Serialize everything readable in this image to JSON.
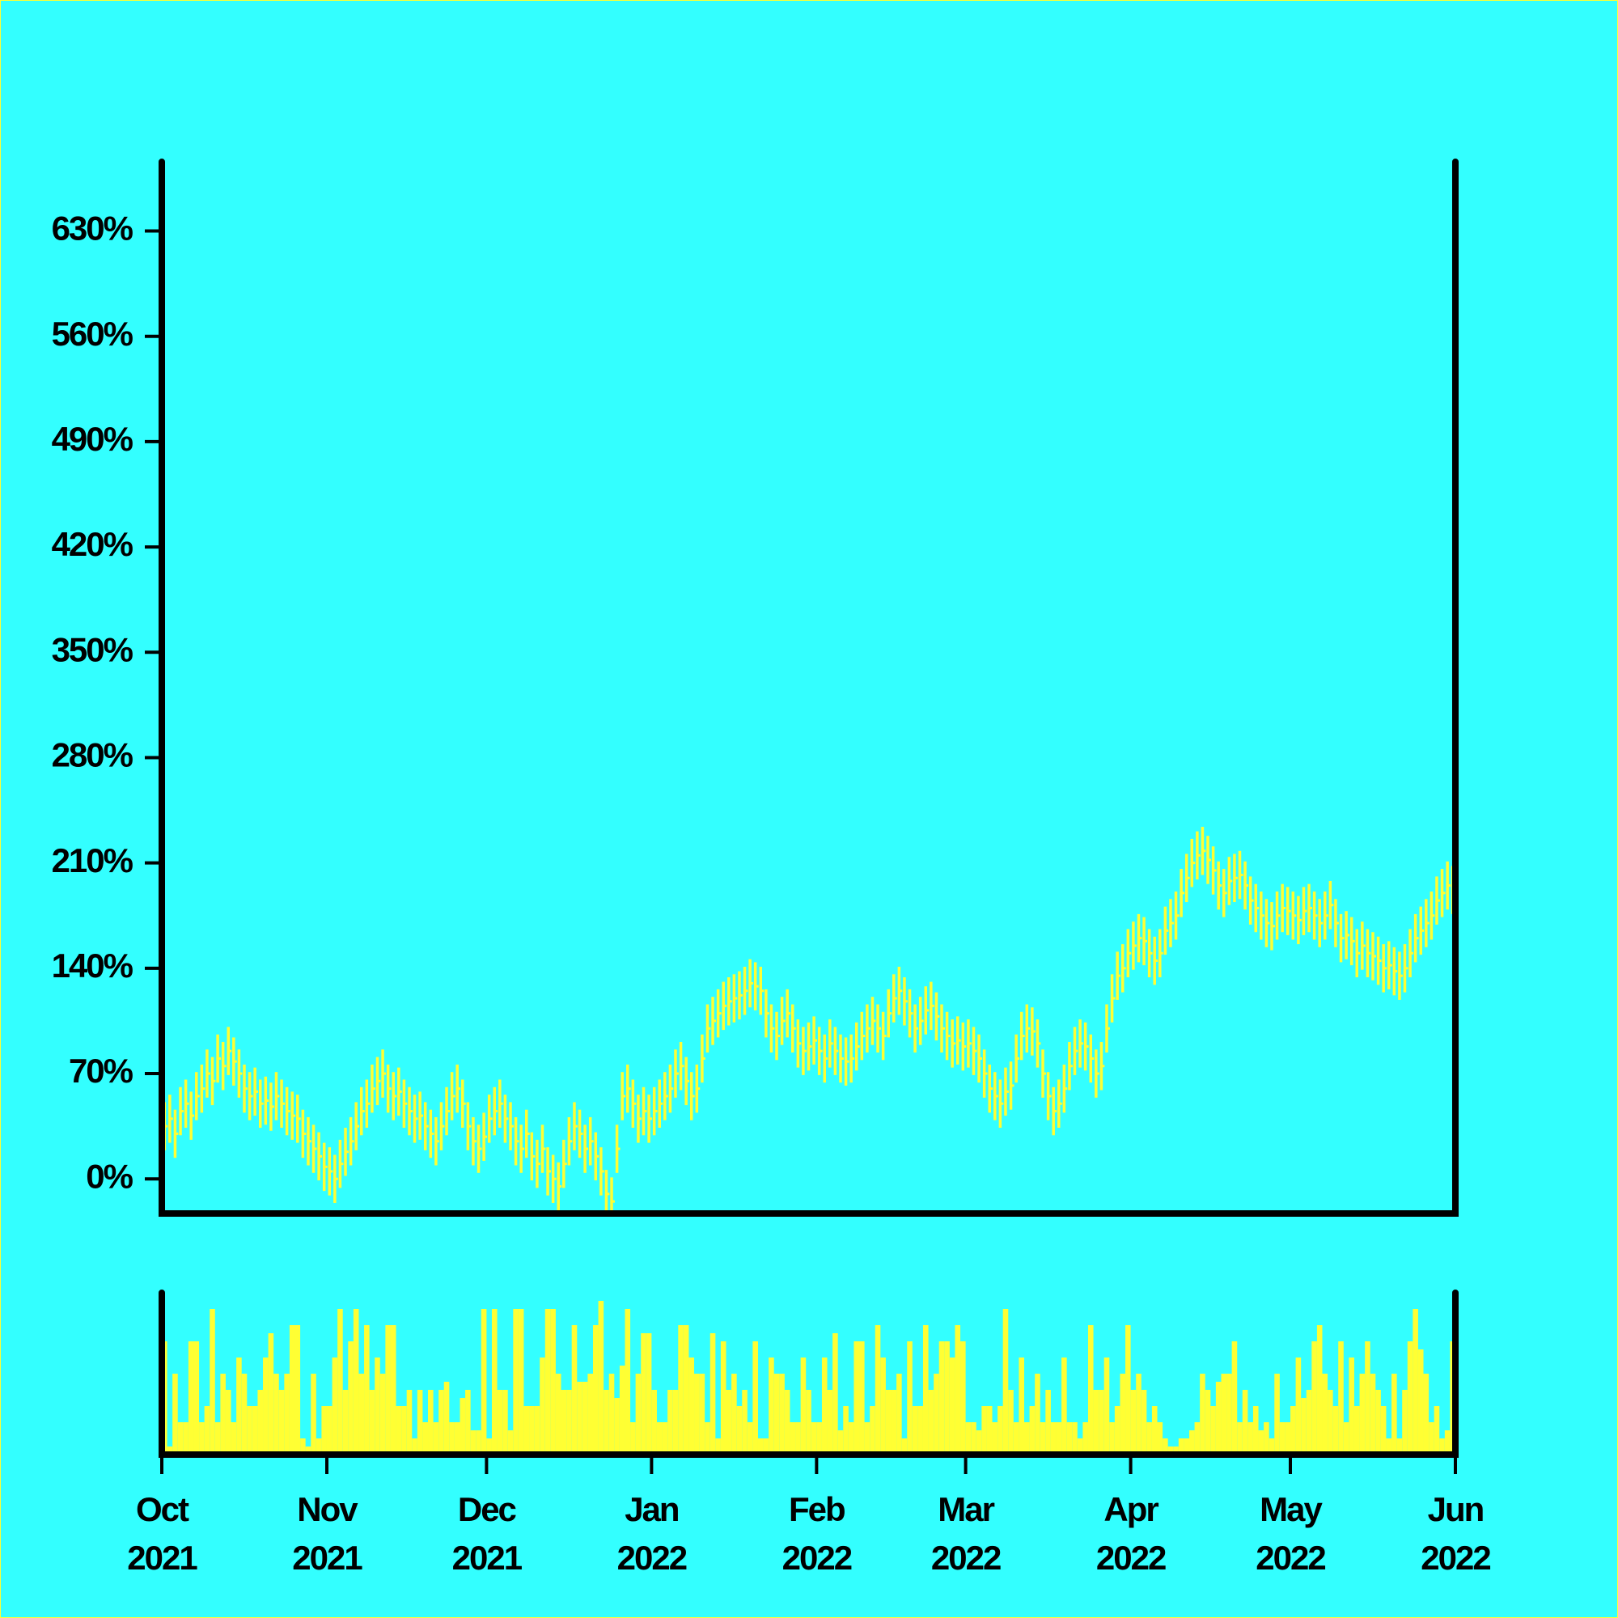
{
  "chart_data": {
    "type": "hlc",
    "x": [
      "2021-10-01",
      "2021-10-02",
      "2021-10-03",
      "2021-10-04",
      "2021-10-05",
      "2021-10-06",
      "2021-10-07",
      "2021-10-08",
      "2021-10-09",
      "2021-10-10",
      "2021-10-11",
      "2021-10-12",
      "2021-10-13",
      "2021-10-14",
      "2021-10-15",
      "2021-10-16",
      "2021-10-17",
      "2021-10-18",
      "2021-10-19",
      "2021-10-20",
      "2021-10-21",
      "2021-10-22",
      "2021-10-23",
      "2021-10-24",
      "2021-10-25",
      "2021-10-26",
      "2021-10-27",
      "2021-10-28",
      "2021-10-29",
      "2021-10-30",
      "2021-10-31",
      "2021-11-01",
      "2021-11-02",
      "2021-11-03",
      "2021-11-04",
      "2021-11-05",
      "2021-11-06",
      "2021-11-07",
      "2021-11-08",
      "2021-11-09",
      "2021-11-10",
      "2021-11-11",
      "2021-11-12",
      "2021-11-13",
      "2021-11-14",
      "2021-11-15",
      "2021-11-16",
      "2021-11-17",
      "2021-11-18",
      "2021-11-19",
      "2021-11-20",
      "2021-11-21",
      "2021-11-22",
      "2021-11-23",
      "2021-11-24",
      "2021-11-25",
      "2021-11-26",
      "2021-11-27",
      "2021-11-28",
      "2021-11-29",
      "2021-11-30",
      "2021-12-01",
      "2021-12-02",
      "2021-12-03",
      "2021-12-04",
      "2021-12-05",
      "2021-12-06",
      "2021-12-07",
      "2021-12-08",
      "2021-12-09",
      "2021-12-10",
      "2021-12-11",
      "2021-12-12",
      "2021-12-13",
      "2021-12-14",
      "2021-12-15",
      "2021-12-16",
      "2021-12-17",
      "2021-12-18",
      "2021-12-19",
      "2021-12-20",
      "2021-12-21",
      "2021-12-22",
      "2021-12-23",
      "2021-12-24",
      "2021-12-25",
      "2021-12-26",
      "2021-12-27",
      "2021-12-28",
      "2021-12-29",
      "2021-12-30",
      "2021-12-31",
      "2022-01-01",
      "2022-01-02",
      "2022-01-03",
      "2022-01-04",
      "2022-01-05",
      "2022-01-06",
      "2022-01-07",
      "2022-01-08",
      "2022-01-09",
      "2022-01-10",
      "2022-01-11",
      "2022-01-12",
      "2022-01-13",
      "2022-01-14",
      "2022-01-15",
      "2022-01-16",
      "2022-01-17",
      "2022-01-18",
      "2022-01-19",
      "2022-01-20",
      "2022-01-21",
      "2022-01-22",
      "2022-01-23",
      "2022-01-24",
      "2022-01-25",
      "2022-01-26",
      "2022-01-27",
      "2022-01-28",
      "2022-01-29",
      "2022-01-30",
      "2022-01-31",
      "2022-02-01",
      "2022-02-02",
      "2022-02-03",
      "2022-02-04",
      "2022-02-05",
      "2022-02-06",
      "2022-02-07",
      "2022-02-08",
      "2022-02-09",
      "2022-02-10",
      "2022-02-11",
      "2022-02-12",
      "2022-02-13",
      "2022-02-14",
      "2022-02-15",
      "2022-02-16",
      "2022-02-17",
      "2022-02-18",
      "2022-02-19",
      "2022-02-20",
      "2022-02-21",
      "2022-02-22",
      "2022-02-23",
      "2022-02-24",
      "2022-02-25",
      "2022-02-26",
      "2022-02-27",
      "2022-02-28",
      "2022-03-01",
      "2022-03-02",
      "2022-03-03",
      "2022-03-04",
      "2022-03-05",
      "2022-03-06",
      "2022-03-07",
      "2022-03-08",
      "2022-03-09",
      "2022-03-10",
      "2022-03-11",
      "2022-03-12",
      "2022-03-13",
      "2022-03-14",
      "2022-03-15",
      "2022-03-16",
      "2022-03-17",
      "2022-03-18",
      "2022-03-19",
      "2022-03-20",
      "2022-03-21",
      "2022-03-22",
      "2022-03-23",
      "2022-03-24",
      "2022-03-25",
      "2022-03-26",
      "2022-03-27",
      "2022-03-28",
      "2022-03-29",
      "2022-03-30",
      "2022-03-31",
      "2022-04-01",
      "2022-04-02",
      "2022-04-03",
      "2022-04-04",
      "2022-04-05",
      "2022-04-06",
      "2022-04-07",
      "2022-04-08",
      "2022-04-09",
      "2022-04-10",
      "2022-04-11",
      "2022-04-12",
      "2022-04-13",
      "2022-04-14",
      "2022-04-15",
      "2022-04-16",
      "2022-04-17",
      "2022-04-18",
      "2022-04-19",
      "2022-04-20",
      "2022-04-21",
      "2022-04-22",
      "2022-04-23",
      "2022-04-24",
      "2022-04-25",
      "2022-04-26",
      "2022-04-27",
      "2022-04-28",
      "2022-04-29",
      "2022-04-30",
      "2022-05-01",
      "2022-05-02",
      "2022-05-03",
      "2022-05-04",
      "2022-05-05",
      "2022-05-06",
      "2022-05-07",
      "2022-05-08",
      "2022-05-09",
      "2022-05-10",
      "2022-05-11",
      "2022-05-12",
      "2022-05-13",
      "2022-05-14",
      "2022-05-15",
      "2022-05-16",
      "2022-05-17",
      "2022-05-18",
      "2022-05-19",
      "2022-05-20",
      "2022-05-21",
      "2022-05-22",
      "2022-05-23",
      "2022-05-24",
      "2022-05-25",
      "2022-05-26",
      "2022-05-27",
      "2022-05-28",
      "2022-05-29",
      "2022-05-30",
      "2022-05-31"
    ],
    "high": [
      51,
      56,
      46,
      61,
      66,
      58,
      71,
      76,
      86,
      81,
      96,
      91,
      101,
      94,
      86,
      76,
      71,
      74,
      66,
      68,
      64,
      71,
      66,
      61,
      58,
      56,
      46,
      41,
      36,
      31,
      24,
      21,
      16,
      26,
      34,
      41,
      51,
      61,
      66,
      76,
      81,
      86,
      76,
      71,
      74,
      66,
      61,
      56,
      58,
      51,
      46,
      41,
      51,
      61,
      71,
      76,
      66,
      51,
      41,
      36,
      44,
      56,
      61,
      66,
      56,
      51,
      41,
      36,
      46,
      31,
      26,
      36,
      21,
      16,
      11,
      26,
      41,
      51,
      46,
      36,
      41,
      31,
      21,
      6,
      1,
      36,
      71,
      76,
      66,
      56,
      61,
      56,
      61,
      66,
      71,
      76,
      86,
      91,
      81,
      71,
      76,
      96,
      116,
      121,
      126,
      131,
      134,
      136,
      138,
      141,
      146,
      144,
      141,
      126,
      116,
      111,
      121,
      126,
      116,
      106,
      101,
      104,
      108,
      101,
      96,
      106,
      101,
      96,
      94,
      96,
      104,
      111,
      116,
      121,
      116,
      111,
      126,
      136,
      141,
      134,
      126,
      116,
      121,
      128,
      131,
      124,
      116,
      111,
      106,
      108,
      104,
      106,
      101,
      96,
      86,
      76,
      71,
      66,
      74,
      78,
      96,
      111,
      116,
      114,
      106,
      86,
      71,
      61,
      66,
      76,
      91,
      101,
      106,
      104,
      96,
      86,
      91,
      116,
      136,
      151,
      156,
      166,
      171,
      176,
      174,
      166,
      161,
      166,
      181,
      186,
      191,
      206,
      216,
      226,
      231,
      234,
      228,
      221,
      211,
      206,
      214,
      216,
      218,
      211,
      201,
      196,
      191,
      186,
      184,
      191,
      196,
      194,
      191,
      188,
      194,
      196,
      191,
      186,
      191,
      198,
      186,
      176,
      178,
      174,
      166,
      171,
      166,
      164,
      161,
      156,
      158,
      154,
      151,
      156,
      166,
      176,
      181,
      186,
      191,
      201,
      206,
      211,
      208
    ],
    "low": [
      19,
      24,
      14,
      29,
      34,
      26,
      39,
      44,
      54,
      49,
      64,
      59,
      69,
      62,
      54,
      44,
      39,
      42,
      34,
      36,
      32,
      39,
      34,
      29,
      26,
      24,
      14,
      9,
      4,
      -1,
      -8,
      -11,
      -16,
      -6,
      2,
      9,
      19,
      29,
      34,
      44,
      49,
      54,
      44,
      39,
      42,
      34,
      29,
      24,
      26,
      19,
      14,
      9,
      19,
      29,
      39,
      44,
      34,
      19,
      9,
      4,
      12,
      24,
      29,
      34,
      24,
      19,
      9,
      4,
      14,
      -1,
      -6,
      4,
      -11,
      -16,
      -21,
      -6,
      9,
      19,
      14,
      4,
      9,
      -1,
      -11,
      -26,
      -31,
      4,
      39,
      44,
      34,
      24,
      29,
      24,
      29,
      34,
      39,
      44,
      54,
      59,
      49,
      39,
      44,
      64,
      84,
      89,
      94,
      99,
      102,
      104,
      106,
      109,
      114,
      112,
      109,
      94,
      84,
      79,
      89,
      94,
      84,
      74,
      69,
      72,
      76,
      69,
      64,
      74,
      69,
      64,
      62,
      64,
      72,
      79,
      84,
      89,
      84,
      79,
      94,
      104,
      109,
      102,
      94,
      84,
      89,
      96,
      99,
      92,
      84,
      79,
      74,
      76,
      72,
      74,
      69,
      64,
      54,
      44,
      39,
      34,
      42,
      46,
      64,
      79,
      84,
      82,
      74,
      54,
      39,
      29,
      34,
      44,
      59,
      69,
      74,
      72,
      64,
      54,
      59,
      84,
      104,
      119,
      124,
      134,
      139,
      144,
      142,
      134,
      129,
      134,
      149,
      154,
      159,
      174,
      184,
      194,
      199,
      202,
      196,
      189,
      179,
      174,
      182,
      184,
      186,
      179,
      169,
      164,
      159,
      154,
      152,
      159,
      164,
      162,
      159,
      156,
      162,
      164,
      159,
      154,
      159,
      166,
      154,
      144,
      146,
      142,
      134,
      139,
      134,
      132,
      129,
      124,
      126,
      122,
      119,
      124,
      134,
      144,
      149,
      154,
      159,
      169,
      174,
      179,
      176
    ],
    "close": [
      35,
      40,
      30,
      45,
      50,
      42,
      55,
      60,
      70,
      65,
      80,
      75,
      85,
      78,
      70,
      60,
      55,
      58,
      50,
      52,
      48,
      55,
      50,
      45,
      42,
      40,
      30,
      25,
      20,
      15,
      8,
      5,
      0,
      10,
      18,
      25,
      35,
      45,
      50,
      60,
      65,
      70,
      60,
      55,
      58,
      50,
      45,
      40,
      42,
      35,
      30,
      25,
      35,
      45,
      55,
      60,
      50,
      35,
      25,
      20,
      28,
      40,
      45,
      50,
      40,
      35,
      25,
      20,
      30,
      15,
      10,
      20,
      5,
      0,
      -5,
      10,
      25,
      35,
      30,
      20,
      25,
      15,
      5,
      -10,
      -15,
      20,
      55,
      60,
      50,
      40,
      45,
      40,
      45,
      50,
      55,
      60,
      70,
      75,
      65,
      55,
      60,
      80,
      100,
      105,
      110,
      115,
      118,
      120,
      122,
      125,
      130,
      128,
      125,
      110,
      100,
      95,
      105,
      110,
      100,
      90,
      85,
      88,
      92,
      85,
      80,
      90,
      85,
      80,
      78,
      80,
      88,
      95,
      100,
      105,
      100,
      95,
      110,
      120,
      125,
      118,
      110,
      100,
      105,
      112,
      115,
      108,
      100,
      95,
      90,
      92,
      88,
      90,
      85,
      80,
      70,
      60,
      55,
      50,
      58,
      62,
      80,
      95,
      100,
      98,
      90,
      70,
      55,
      45,
      50,
      60,
      75,
      85,
      90,
      88,
      80,
      70,
      75,
      100,
      120,
      135,
      140,
      150,
      155,
      160,
      158,
      150,
      145,
      150,
      165,
      170,
      175,
      190,
      200,
      210,
      215,
      218,
      212,
      205,
      195,
      190,
      198,
      200,
      202,
      195,
      185,
      180,
      175,
      170,
      168,
      175,
      180,
      178,
      175,
      172,
      178,
      180,
      175,
      170,
      175,
      182,
      170,
      160,
      162,
      158,
      150,
      155,
      150,
      148,
      145,
      140,
      142,
      138,
      135,
      140,
      150,
      160,
      165,
      170,
      175,
      185,
      190,
      195,
      192
    ],
    "volume": [
      70,
      5,
      50,
      20,
      20,
      70,
      70,
      20,
      30,
      90,
      20,
      50,
      40,
      20,
      60,
      50,
      30,
      30,
      40,
      60,
      75,
      50,
      40,
      50,
      80,
      80,
      10,
      5,
      50,
      10,
      30,
      30,
      60,
      90,
      40,
      70,
      90,
      50,
      80,
      40,
      60,
      50,
      80,
      80,
      30,
      30,
      40,
      10,
      40,
      20,
      40,
      20,
      40,
      45,
      20,
      20,
      35,
      40,
      15,
      15,
      90,
      10,
      90,
      40,
      40,
      15,
      90,
      90,
      30,
      30,
      30,
      60,
      90,
      90,
      50,
      40,
      40,
      80,
      45,
      45,
      50,
      80,
      95,
      40,
      50,
      35,
      55,
      90,
      20,
      50,
      75,
      75,
      40,
      20,
      20,
      40,
      40,
      80,
      80,
      60,
      50,
      50,
      20,
      75,
      10,
      70,
      40,
      50,
      30,
      40,
      20,
      70,
      10,
      10,
      60,
      50,
      50,
      40,
      20,
      20,
      60,
      40,
      20,
      20,
      60,
      40,
      75,
      15,
      30,
      20,
      70,
      70,
      20,
      30,
      80,
      60,
      40,
      40,
      50,
      10,
      70,
      30,
      30,
      80,
      40,
      50,
      70,
      70,
      60,
      80,
      70,
      20,
      20,
      15,
      30,
      30,
      20,
      30,
      90,
      40,
      20,
      60,
      20,
      30,
      50,
      20,
      40,
      20,
      20,
      60,
      20,
      20,
      10,
      20,
      80,
      40,
      40,
      60,
      20,
      30,
      50,
      80,
      40,
      50,
      40,
      20,
      30,
      20,
      10,
      5,
      5,
      10,
      10,
      15,
      20,
      50,
      40,
      30,
      45,
      50,
      50,
      70,
      20,
      40,
      20,
      30,
      15,
      20,
      10,
      50,
      20,
      20,
      30,
      60,
      35,
      40,
      70,
      80,
      50,
      40,
      30,
      70,
      20,
      60,
      30,
      50,
      70,
      50,
      40,
      30,
      10,
      50,
      10,
      40,
      70,
      90,
      65,
      50,
      20,
      30,
      10,
      15,
      70
    ],
    "color": "#ffff33",
    "xlim": [
      "2021-10-01",
      "2022-06-01"
    ],
    "xticks": [
      {
        "value": "2021-10-01",
        "label": "Oct\n2021"
      },
      {
        "value": "2021-11-01",
        "label": "Nov\n2021"
      },
      {
        "value": "2021-12-01",
        "label": "Dec\n2021"
      },
      {
        "value": "2022-01-01",
        "label": "Jan\n2022"
      },
      {
        "value": "2022-02-01",
        "label": "Feb\n2022"
      },
      {
        "value": "2022-03-01",
        "label": "Mar\n2022"
      },
      {
        "value": "2022-04-01",
        "label": "Apr\n2022"
      },
      {
        "value": "2022-05-01",
        "label": "May\n2022"
      },
      {
        "value": "2022-06-01",
        "label": "Jun\n2022"
      }
    ],
    "ylim": [
      -23,
      676
    ],
    "yticks": [
      {
        "value": 0,
        "label": "0%"
      },
      {
        "value": 70,
        "label": "70%"
      },
      {
        "value": 140,
        "label": "140%"
      },
      {
        "value": 210,
        "label": "210%"
      },
      {
        "value": 280,
        "label": "280%"
      },
      {
        "value": 350,
        "label": "350%"
      },
      {
        "value": 420,
        "label": "420%"
      },
      {
        "value": 490,
        "label": "490%"
      },
      {
        "value": 560,
        "label": "560%"
      },
      {
        "value": 630,
        "label": "630%"
      }
    ],
    "volume_ylim": [
      0,
      100
    ]
  }
}
